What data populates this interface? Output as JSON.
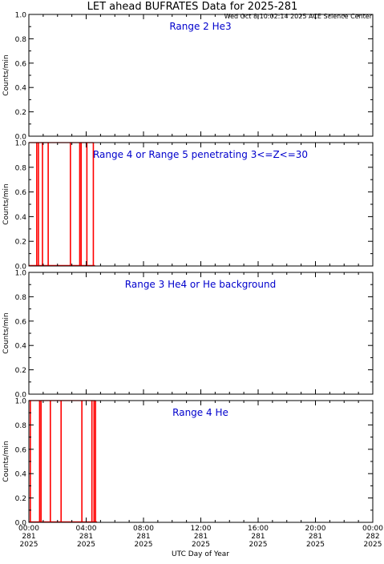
{
  "title": "LET ahead BUFRATES Data for 2025-281",
  "timestamp": "Wed Oct  8 10:02:14 2025 ACE Science Center",
  "colors": {
    "frame": "#000000",
    "label": "#0000cc",
    "data": "#ff0000"
  },
  "chart_data": [
    {
      "type": "line",
      "title": "Range 2 He3",
      "ylabel": "Counts/min",
      "ylim": [
        0,
        1
      ],
      "yticks": [
        "0.0",
        "0.2",
        "0.4",
        "0.6",
        "0.8",
        "1.0"
      ],
      "xlim": [
        0,
        24
      ],
      "series": [
        {
          "values": []
        }
      ]
    },
    {
      "type": "line",
      "title": "Range 4 or Range 5 penetrating 3<=Z<=30",
      "ylabel": "Counts/min",
      "ylim": [
        0,
        1
      ],
      "yticks": [
        "0.0",
        "0.2",
        "0.4",
        "0.6",
        "0.8",
        "1.0"
      ],
      "xlim": [
        0,
        24
      ],
      "spikes_h": [
        0.55,
        0.67,
        0.95,
        1.35,
        2.9,
        3.55,
        3.65,
        4.05,
        4.5
      ],
      "series": [
        {
          "values": [
            0,
            1
          ]
        }
      ]
    },
    {
      "type": "line",
      "title": "Range 3 He4 or He background",
      "ylabel": "Counts/min",
      "ylim": [
        0,
        1
      ],
      "yticks": [
        "0.0",
        "0.2",
        "0.4",
        "0.6",
        "0.8",
        "1.0"
      ],
      "xlim": [
        0,
        24
      ],
      "series": [
        {
          "values": []
        }
      ]
    },
    {
      "type": "line",
      "title": "Range 4 He",
      "ylabel": "Counts/min",
      "ylim": [
        0,
        1
      ],
      "yticks": [
        "0.0",
        "0.2",
        "0.4",
        "0.6",
        "0.8",
        "1.0"
      ],
      "xlim": [
        0,
        24
      ],
      "spikes_h": [
        0.1,
        0.75,
        0.85,
        1.5,
        2.25,
        3.7,
        4.4,
        4.55,
        4.65
      ],
      "series": [
        {
          "values": [
            0,
            1
          ]
        }
      ]
    }
  ],
  "xaxis": {
    "label": "UTC Day of Year",
    "ticks": [
      {
        "time": "00:00",
        "doy": "281",
        "year": "2025"
      },
      {
        "time": "04:00",
        "doy": "281",
        "year": "2025"
      },
      {
        "time": "08:00",
        "doy": "281",
        "year": "2025"
      },
      {
        "time": "12:00",
        "doy": "281",
        "year": "2025"
      },
      {
        "time": "16:00",
        "doy": "281",
        "year": "2025"
      },
      {
        "time": "20:00",
        "doy": "281",
        "year": "2025"
      },
      {
        "time": "00:00",
        "doy": "282",
        "year": "2025"
      }
    ]
  }
}
